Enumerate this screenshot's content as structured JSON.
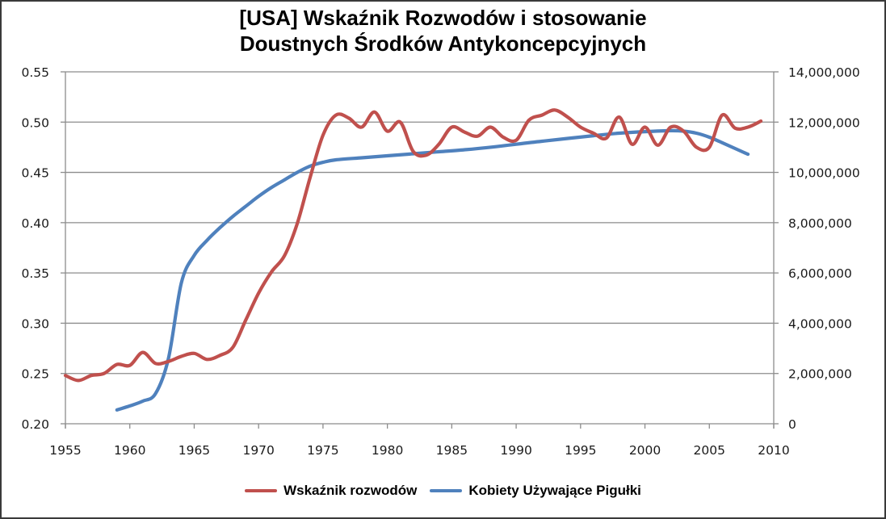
{
  "title": {
    "line1": "[USA] Wskaźnik Rozwodów i stosowanie",
    "line2": "Doustnych Środków Antykoncepcyjnych"
  },
  "colors": {
    "divorce": "#C0504D",
    "pill": "#4F81BD",
    "grid": "#8C8C8C",
    "axis": "#8C8C8C"
  },
  "legend": [
    {
      "label": "Wskaźnik rozwodów",
      "color": "#C0504D"
    },
    {
      "label": "Kobiety Używające Pigułki",
      "color": "#4F81BD"
    }
  ],
  "axes": {
    "x_ticks": [
      "1955",
      "1960",
      "1965",
      "1970",
      "1975",
      "1980",
      "1985",
      "1990",
      "1995",
      "2000",
      "2005",
      "2010"
    ],
    "y_left_ticks": [
      "0.55",
      "0.50",
      "0.45",
      "0.40",
      "0.35",
      "0.30",
      "0.25",
      "0.20"
    ],
    "y_right_ticks": [
      "14,000,000",
      "12,000,000",
      "10,000,000",
      "8,000,000",
      "6,000,000",
      "4,000,000",
      "2,000,000",
      "0"
    ]
  },
  "chart_data": {
    "type": "line",
    "title": "[USA] Wskaźnik Rozwodów i stosowanie Doustnych Środków Antykoncepcyjnych",
    "xlabel": "",
    "ylabel": "",
    "y2label": "",
    "xlim": [
      1955,
      2010
    ],
    "ylim": [
      0.2,
      0.55
    ],
    "y2lim": [
      0,
      14000000
    ],
    "grid": true,
    "legend_position": "bottom",
    "series": [
      {
        "name": "Wskaźnik rozwodów",
        "axis": "left",
        "color": "#C0504D",
        "x": [
          1955,
          1956,
          1957,
          1958,
          1959,
          1960,
          1961,
          1962,
          1963,
          1964,
          1965,
          1966,
          1967,
          1968,
          1969,
          1970,
          1971,
          1972,
          1973,
          1974,
          1975,
          1976,
          1977,
          1978,
          1979,
          1980,
          1981,
          1982,
          1983,
          1984,
          1985,
          1986,
          1987,
          1988,
          1989,
          1990,
          1991,
          1992,
          1993,
          1994,
          1995,
          1996,
          1997,
          1998,
          1999,
          2000,
          2001,
          2002,
          2003,
          2004,
          2005,
          2006,
          2007,
          2008,
          2009
        ],
        "values": [
          0.248,
          0.243,
          0.248,
          0.25,
          0.259,
          0.258,
          0.271,
          0.26,
          0.262,
          0.267,
          0.27,
          0.264,
          0.268,
          0.276,
          0.303,
          0.33,
          0.351,
          0.367,
          0.399,
          0.445,
          0.487,
          0.507,
          0.504,
          0.495,
          0.51,
          0.491,
          0.5,
          0.471,
          0.467,
          0.478,
          0.495,
          0.49,
          0.486,
          0.495,
          0.485,
          0.482,
          0.502,
          0.507,
          0.512,
          0.505,
          0.495,
          0.489,
          0.484,
          0.505,
          0.478,
          0.495,
          0.477,
          0.495,
          0.491,
          0.475,
          0.475,
          0.507,
          0.494,
          0.495,
          0.501
        ]
      },
      {
        "name": "Kobiety Używające Pigułki",
        "axis": "right",
        "color": "#4F81BD",
        "x": [
          1959,
          1960,
          1961,
          1962,
          1963,
          1964,
          1965,
          1966,
          1967,
          1968,
          1969,
          1970,
          1971,
          1972,
          1973,
          1974,
          1975,
          1976,
          1978,
          1980,
          1982,
          1984,
          1986,
          1988,
          1990,
          1992,
          1994,
          1996,
          1998,
          2000,
          2002,
          2003,
          2004,
          2005,
          2006,
          2007,
          2008
        ],
        "values": [
          550000,
          710000,
          900000,
          1200000,
          2600000,
          5600000,
          6700000,
          7300000,
          7800000,
          8250000,
          8650000,
          9050000,
          9400000,
          9700000,
          10000000,
          10250000,
          10400000,
          10500000,
          10580000,
          10660000,
          10740000,
          10820000,
          10900000,
          11000000,
          11120000,
          11240000,
          11350000,
          11460000,
          11560000,
          11620000,
          11660000,
          11640000,
          11560000,
          11400000,
          11180000,
          10950000,
          10720000
        ]
      }
    ]
  }
}
